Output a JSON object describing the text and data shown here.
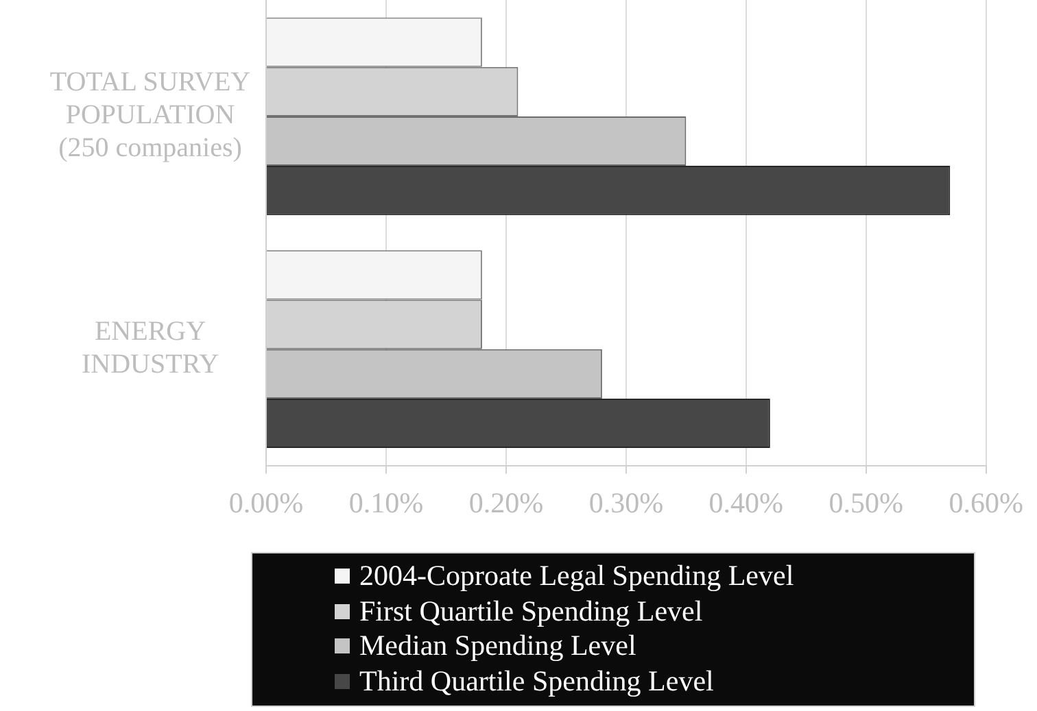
{
  "chart_data": {
    "type": "bar",
    "orientation": "horizontal",
    "categories": [
      "TOTAL SURVEY POPULATION (250 companies)",
      "ENERGY INDUSTRY"
    ],
    "series": [
      {
        "name": "2004-Coproate Legal Spending Level",
        "color": "#f5f5f5",
        "values": [
          0.18,
          0.18
        ]
      },
      {
        "name": "First Quartile Spending Level",
        "color": "#d3d3d3",
        "values": [
          0.21,
          0.18
        ]
      },
      {
        "name": "Median Spending Level",
        "color": "#c4c4c4",
        "values": [
          0.35,
          0.28
        ]
      },
      {
        "name": "Third Quartile Spending Level",
        "color": "#474747",
        "values": [
          0.57,
          0.42
        ]
      }
    ],
    "xlim": [
      0,
      0.6
    ],
    "xticks": [
      {
        "value": 0,
        "label": "0.00%"
      },
      {
        "value": 0.1,
        "label": "0.10%"
      },
      {
        "value": 0.2,
        "label": "0.20%"
      },
      {
        "value": 0.3,
        "label": "0.30%"
      },
      {
        "value": 0.4,
        "label": "0.40%"
      },
      {
        "value": 0.5,
        "label": "0.50%"
      },
      {
        "value": 0.6,
        "label": "0.60%"
      }
    ],
    "grid": "x",
    "legend": "bottom"
  }
}
